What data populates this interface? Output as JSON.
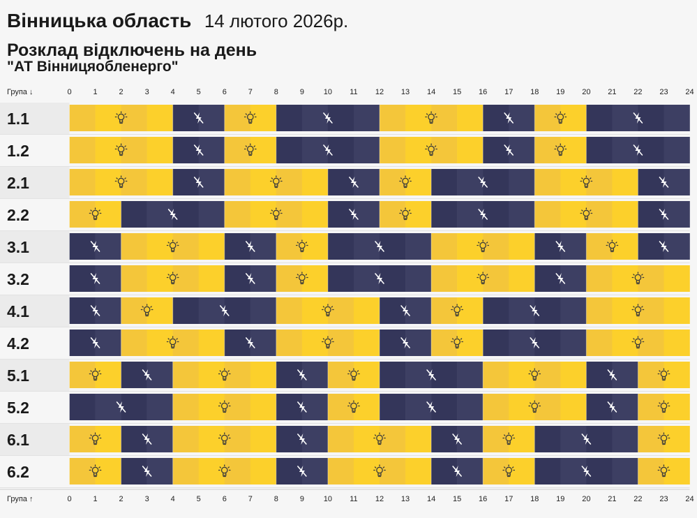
{
  "header": {
    "region": "Вінницька область",
    "date": "14 лютого 2026р.",
    "subtitle": "Розклад відключень на день",
    "company": "\"АТ Вінницяобленерго\""
  },
  "axis": {
    "top_label": "Група ↓",
    "bottom_label": "Група ↑"
  },
  "colors": {
    "on": "#fcd02b",
    "on_dark": "#f4c63a",
    "off": "#3d3f63",
    "off_dark": "#34365a",
    "icon_on": "#3a3a3a",
    "icon_off": "#ffffff",
    "label_bg": "#ebebeb"
  },
  "chart_data": {
    "type": "heatmap",
    "x_ticks": [
      0,
      1,
      2,
      3,
      4,
      5,
      6,
      7,
      8,
      9,
      10,
      11,
      12,
      13,
      14,
      15,
      16,
      17,
      18,
      19,
      20,
      21,
      22,
      23,
      24
    ],
    "xlim": [
      0,
      24
    ],
    "legend": {
      "on": "power on (light-bulb icon)",
      "off": "power off (crossed-lightning icon)"
    },
    "groups": [
      {
        "name": "1.1",
        "segments": [
          {
            "from": 0,
            "to": 4,
            "state": "on"
          },
          {
            "from": 4,
            "to": 6,
            "state": "off"
          },
          {
            "from": 6,
            "to": 8,
            "state": "on"
          },
          {
            "from": 8,
            "to": 12,
            "state": "off"
          },
          {
            "from": 12,
            "to": 16,
            "state": "on"
          },
          {
            "from": 16,
            "to": 18,
            "state": "off"
          },
          {
            "from": 18,
            "to": 20,
            "state": "on"
          },
          {
            "from": 20,
            "to": 24,
            "state": "off"
          }
        ]
      },
      {
        "name": "1.2",
        "segments": [
          {
            "from": 0,
            "to": 4,
            "state": "on"
          },
          {
            "from": 4,
            "to": 6,
            "state": "off"
          },
          {
            "from": 6,
            "to": 8,
            "state": "on"
          },
          {
            "from": 8,
            "to": 12,
            "state": "off"
          },
          {
            "from": 12,
            "to": 16,
            "state": "on"
          },
          {
            "from": 16,
            "to": 18,
            "state": "off"
          },
          {
            "from": 18,
            "to": 20,
            "state": "on"
          },
          {
            "from": 20,
            "to": 24,
            "state": "off"
          }
        ]
      },
      {
        "name": "2.1",
        "segments": [
          {
            "from": 0,
            "to": 4,
            "state": "on"
          },
          {
            "from": 4,
            "to": 6,
            "state": "off"
          },
          {
            "from": 6,
            "to": 10,
            "state": "on"
          },
          {
            "from": 10,
            "to": 12,
            "state": "off"
          },
          {
            "from": 12,
            "to": 14,
            "state": "on"
          },
          {
            "from": 14,
            "to": 18,
            "state": "off"
          },
          {
            "from": 18,
            "to": 22,
            "state": "on"
          },
          {
            "from": 22,
            "to": 24,
            "state": "off"
          }
        ]
      },
      {
        "name": "2.2",
        "segments": [
          {
            "from": 0,
            "to": 2,
            "state": "on"
          },
          {
            "from": 2,
            "to": 6,
            "state": "off"
          },
          {
            "from": 6,
            "to": 10,
            "state": "on"
          },
          {
            "from": 10,
            "to": 12,
            "state": "off"
          },
          {
            "from": 12,
            "to": 14,
            "state": "on"
          },
          {
            "from": 14,
            "to": 18,
            "state": "off"
          },
          {
            "from": 18,
            "to": 22,
            "state": "on"
          },
          {
            "from": 22,
            "to": 24,
            "state": "off"
          }
        ]
      },
      {
        "name": "3.1",
        "segments": [
          {
            "from": 0,
            "to": 2,
            "state": "off"
          },
          {
            "from": 2,
            "to": 6,
            "state": "on"
          },
          {
            "from": 6,
            "to": 8,
            "state": "off"
          },
          {
            "from": 8,
            "to": 10,
            "state": "on"
          },
          {
            "from": 10,
            "to": 14,
            "state": "off"
          },
          {
            "from": 14,
            "to": 18,
            "state": "on"
          },
          {
            "from": 18,
            "to": 20,
            "state": "off"
          },
          {
            "from": 20,
            "to": 22,
            "state": "on"
          },
          {
            "from": 22,
            "to": 24,
            "state": "off"
          }
        ]
      },
      {
        "name": "3.2",
        "segments": [
          {
            "from": 0,
            "to": 2,
            "state": "off"
          },
          {
            "from": 2,
            "to": 6,
            "state": "on"
          },
          {
            "from": 6,
            "to": 8,
            "state": "off"
          },
          {
            "from": 8,
            "to": 10,
            "state": "on"
          },
          {
            "from": 10,
            "to": 14,
            "state": "off"
          },
          {
            "from": 14,
            "to": 18,
            "state": "on"
          },
          {
            "from": 18,
            "to": 20,
            "state": "off"
          },
          {
            "from": 20,
            "to": 24,
            "state": "on"
          }
        ]
      },
      {
        "name": "4.1",
        "segments": [
          {
            "from": 0,
            "to": 2,
            "state": "off"
          },
          {
            "from": 2,
            "to": 4,
            "state": "on"
          },
          {
            "from": 4,
            "to": 8,
            "state": "off"
          },
          {
            "from": 8,
            "to": 12,
            "state": "on"
          },
          {
            "from": 12,
            "to": 14,
            "state": "off"
          },
          {
            "from": 14,
            "to": 16,
            "state": "on"
          },
          {
            "from": 16,
            "to": 20,
            "state": "off"
          },
          {
            "from": 20,
            "to": 24,
            "state": "on"
          }
        ]
      },
      {
        "name": "4.2",
        "segments": [
          {
            "from": 0,
            "to": 2,
            "state": "off"
          },
          {
            "from": 2,
            "to": 6,
            "state": "on"
          },
          {
            "from": 6,
            "to": 8,
            "state": "off"
          },
          {
            "from": 8,
            "to": 12,
            "state": "on"
          },
          {
            "from": 12,
            "to": 14,
            "state": "off"
          },
          {
            "from": 14,
            "to": 16,
            "state": "on"
          },
          {
            "from": 16,
            "to": 20,
            "state": "off"
          },
          {
            "from": 20,
            "to": 24,
            "state": "on"
          }
        ]
      },
      {
        "name": "5.1",
        "segments": [
          {
            "from": 0,
            "to": 2,
            "state": "on"
          },
          {
            "from": 2,
            "to": 4,
            "state": "off"
          },
          {
            "from": 4,
            "to": 8,
            "state": "on"
          },
          {
            "from": 8,
            "to": 10,
            "state": "off"
          },
          {
            "from": 10,
            "to": 12,
            "state": "on"
          },
          {
            "from": 12,
            "to": 16,
            "state": "off"
          },
          {
            "from": 16,
            "to": 20,
            "state": "on"
          },
          {
            "from": 20,
            "to": 22,
            "state": "off"
          },
          {
            "from": 22,
            "to": 24,
            "state": "on"
          }
        ]
      },
      {
        "name": "5.2",
        "segments": [
          {
            "from": 0,
            "to": 4,
            "state": "off"
          },
          {
            "from": 4,
            "to": 8,
            "state": "on"
          },
          {
            "from": 8,
            "to": 10,
            "state": "off"
          },
          {
            "from": 10,
            "to": 12,
            "state": "on"
          },
          {
            "from": 12,
            "to": 16,
            "state": "off"
          },
          {
            "from": 16,
            "to": 20,
            "state": "on"
          },
          {
            "from": 20,
            "to": 22,
            "state": "off"
          },
          {
            "from": 22,
            "to": 24,
            "state": "on"
          }
        ]
      },
      {
        "name": "6.1",
        "segments": [
          {
            "from": 0,
            "to": 2,
            "state": "on"
          },
          {
            "from": 2,
            "to": 4,
            "state": "off"
          },
          {
            "from": 4,
            "to": 8,
            "state": "on"
          },
          {
            "from": 8,
            "to": 10,
            "state": "off"
          },
          {
            "from": 10,
            "to": 14,
            "state": "on"
          },
          {
            "from": 14,
            "to": 16,
            "state": "off"
          },
          {
            "from": 16,
            "to": 18,
            "state": "on"
          },
          {
            "from": 18,
            "to": 22,
            "state": "off"
          },
          {
            "from": 22,
            "to": 24,
            "state": "on"
          }
        ]
      },
      {
        "name": "6.2",
        "segments": [
          {
            "from": 0,
            "to": 2,
            "state": "on"
          },
          {
            "from": 2,
            "to": 4,
            "state": "off"
          },
          {
            "from": 4,
            "to": 8,
            "state": "on"
          },
          {
            "from": 8,
            "to": 10,
            "state": "off"
          },
          {
            "from": 10,
            "to": 14,
            "state": "on"
          },
          {
            "from": 14,
            "to": 16,
            "state": "off"
          },
          {
            "from": 16,
            "to": 18,
            "state": "on"
          },
          {
            "from": 18,
            "to": 22,
            "state": "off"
          },
          {
            "from": 22,
            "to": 24,
            "state": "on"
          }
        ]
      }
    ]
  }
}
